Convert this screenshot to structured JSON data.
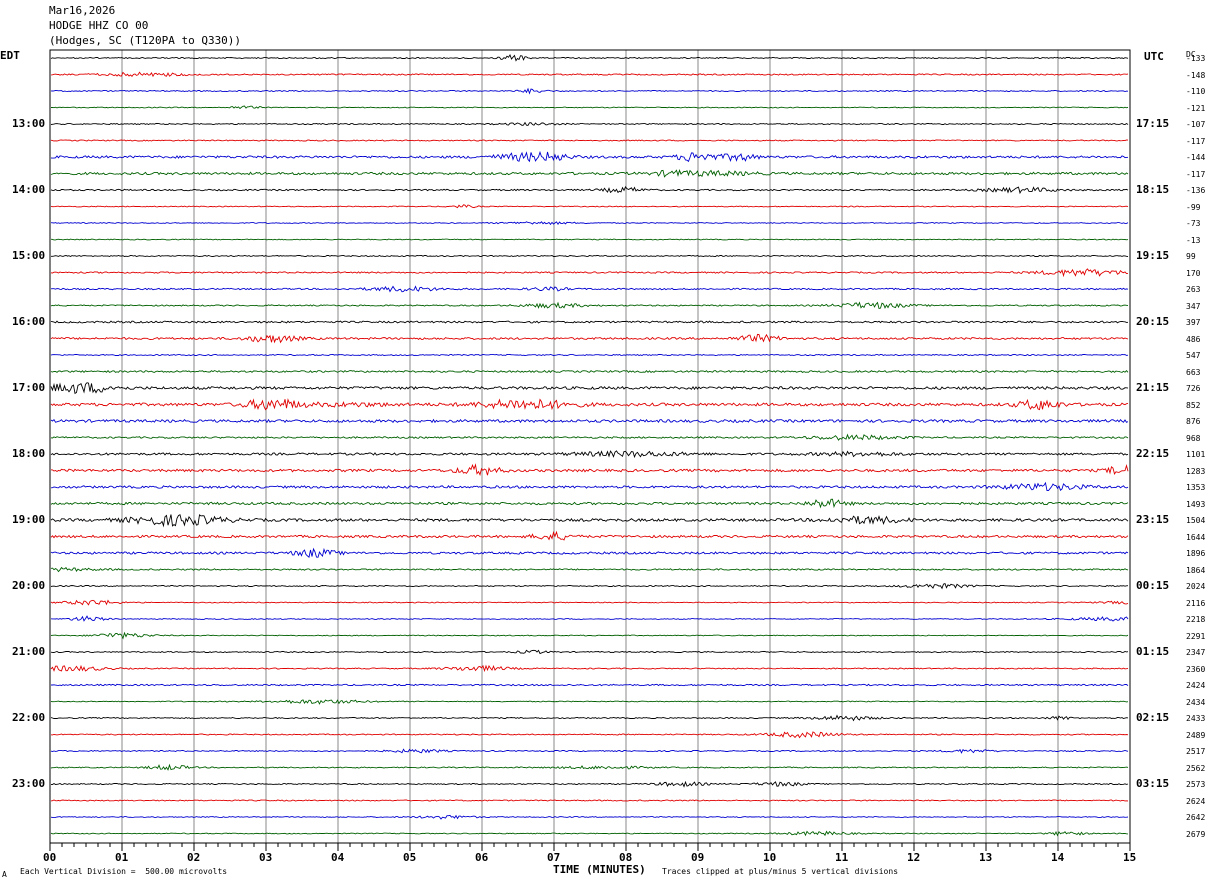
{
  "header": {
    "date": "Mar16,2026",
    "station": "HODGE HHZ CO 00",
    "location": "(Hodges, SC (T120PA to Q330))"
  },
  "left_timezone": "EDT",
  "right_timezone": "UTC",
  "dc_header": "DC",
  "footer": {
    "scale_note": "Each Vertical Division =  500.00 microvolts",
    "xlabel": "TIME (MINUTES)",
    "clip_note": "Traces clipped at plus/minus 5 vertical divisions",
    "corner_mark": "A"
  },
  "colors": {
    "trace_cycle": [
      "#000000",
      "#e00000",
      "#0000d0",
      "#006000"
    ],
    "grid": "#888888",
    "frame": "#000000"
  },
  "chart_data": {
    "type": "line",
    "title": "",
    "xlabel": "TIME (MINUTES)",
    "xlim": [
      0,
      15
    ],
    "x_ticks": [
      "00",
      "01",
      "02",
      "03",
      "04",
      "05",
      "06",
      "07",
      "08",
      "09",
      "10",
      "11",
      "12",
      "13",
      "14",
      "15"
    ],
    "traces_per_hour": 4,
    "trace_minutes": 15,
    "left_hour_labels": [
      {
        "row": 4,
        "text": "13:00"
      },
      {
        "row": 8,
        "text": "14:00"
      },
      {
        "row": 12,
        "text": "15:00"
      },
      {
        "row": 16,
        "text": "16:00"
      },
      {
        "row": 20,
        "text": "17:00"
      },
      {
        "row": 24,
        "text": "18:00"
      },
      {
        "row": 28,
        "text": "19:00"
      },
      {
        "row": 32,
        "text": "20:00"
      },
      {
        "row": 36,
        "text": "21:00"
      },
      {
        "row": 40,
        "text": "22:00"
      },
      {
        "row": 44,
        "text": "23:00"
      }
    ],
    "right_hour_labels": [
      {
        "row": 4,
        "text": "17:15"
      },
      {
        "row": 8,
        "text": "18:15"
      },
      {
        "row": 12,
        "text": "19:15"
      },
      {
        "row": 16,
        "text": "20:15"
      },
      {
        "row": 20,
        "text": "21:15"
      },
      {
        "row": 24,
        "text": "22:15"
      },
      {
        "row": 28,
        "text": "23:15"
      },
      {
        "row": 32,
        "text": "00:15"
      },
      {
        "row": 36,
        "text": "01:15"
      },
      {
        "row": 40,
        "text": "02:15"
      },
      {
        "row": 44,
        "text": "03:15"
      }
    ],
    "dc_offsets": [
      "-133",
      "-148",
      "-110",
      "-121",
      "-107",
      "-117",
      "-144",
      "-117",
      "-136",
      "-99",
      "-73",
      "-13",
      "99",
      "170",
      "263",
      "347",
      "397",
      "486",
      "547",
      "663",
      "726",
      "852",
      "876",
      "968",
      "1101",
      "1283",
      "1353",
      "1493",
      "1504",
      "1644",
      "1896",
      "1864",
      "2024",
      "2116",
      "2218",
      "2291",
      "2347",
      "2360",
      "2424",
      "2434",
      "2433",
      "2489",
      "2517",
      "2562",
      "2573",
      "2624",
      "2642",
      "2679"
    ],
    "trace_activity": [
      0.6,
      0.7,
      0.6,
      0.5,
      0.6,
      0.6,
      1.3,
      1.3,
      0.8,
      0.5,
      0.5,
      0.5,
      0.6,
      0.8,
      0.8,
      0.7,
      1.0,
      1.1,
      0.6,
      1.0,
      1.5,
      1.6,
      1.5,
      0.9,
      1.2,
      1.4,
      1.3,
      1.3,
      1.5,
      1.3,
      1.2,
      0.8,
      0.6,
      0.5,
      0.5,
      0.5,
      0.6,
      0.6,
      0.8,
      0.5,
      0.6,
      0.6,
      0.6,
      0.6,
      0.6,
      0.6,
      0.5,
      0.5
    ]
  }
}
